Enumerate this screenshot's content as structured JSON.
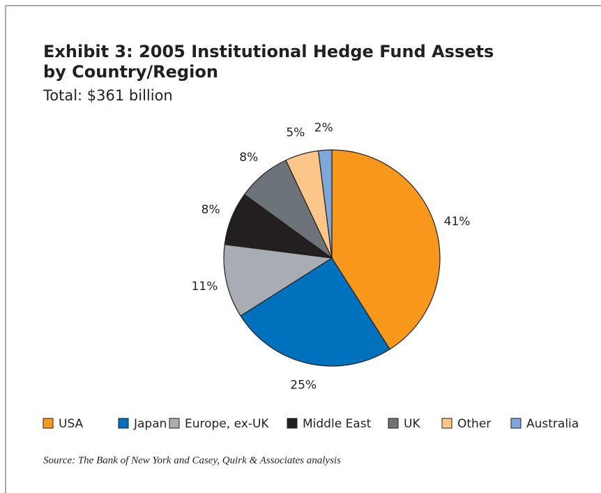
{
  "chart_data": {
    "type": "pie",
    "title": [
      "Exhibit 3: 2005 Institutional Hedge Fund Assets",
      "by Country/Region"
    ],
    "subtitle": "Total:  $361 billion",
    "categories": [
      "USA",
      "Japan",
      "Europe, ex-UK",
      "Middle East",
      "UK",
      "Other",
      "Australia"
    ],
    "values": [
      41,
      25,
      11,
      8,
      8,
      5,
      2
    ],
    "value_labels": [
      "41%",
      "25%",
      "11%",
      "8%",
      "8%",
      "5%",
      "2%"
    ],
    "colors": [
      "#f7981d",
      "#0071bc",
      "#a7adb3",
      "#231f20",
      "#6d7479",
      "#fdc689",
      "#7ea7db"
    ],
    "source": "Source: The Bank of New York and Casey, Quirk & Associates analysis"
  }
}
